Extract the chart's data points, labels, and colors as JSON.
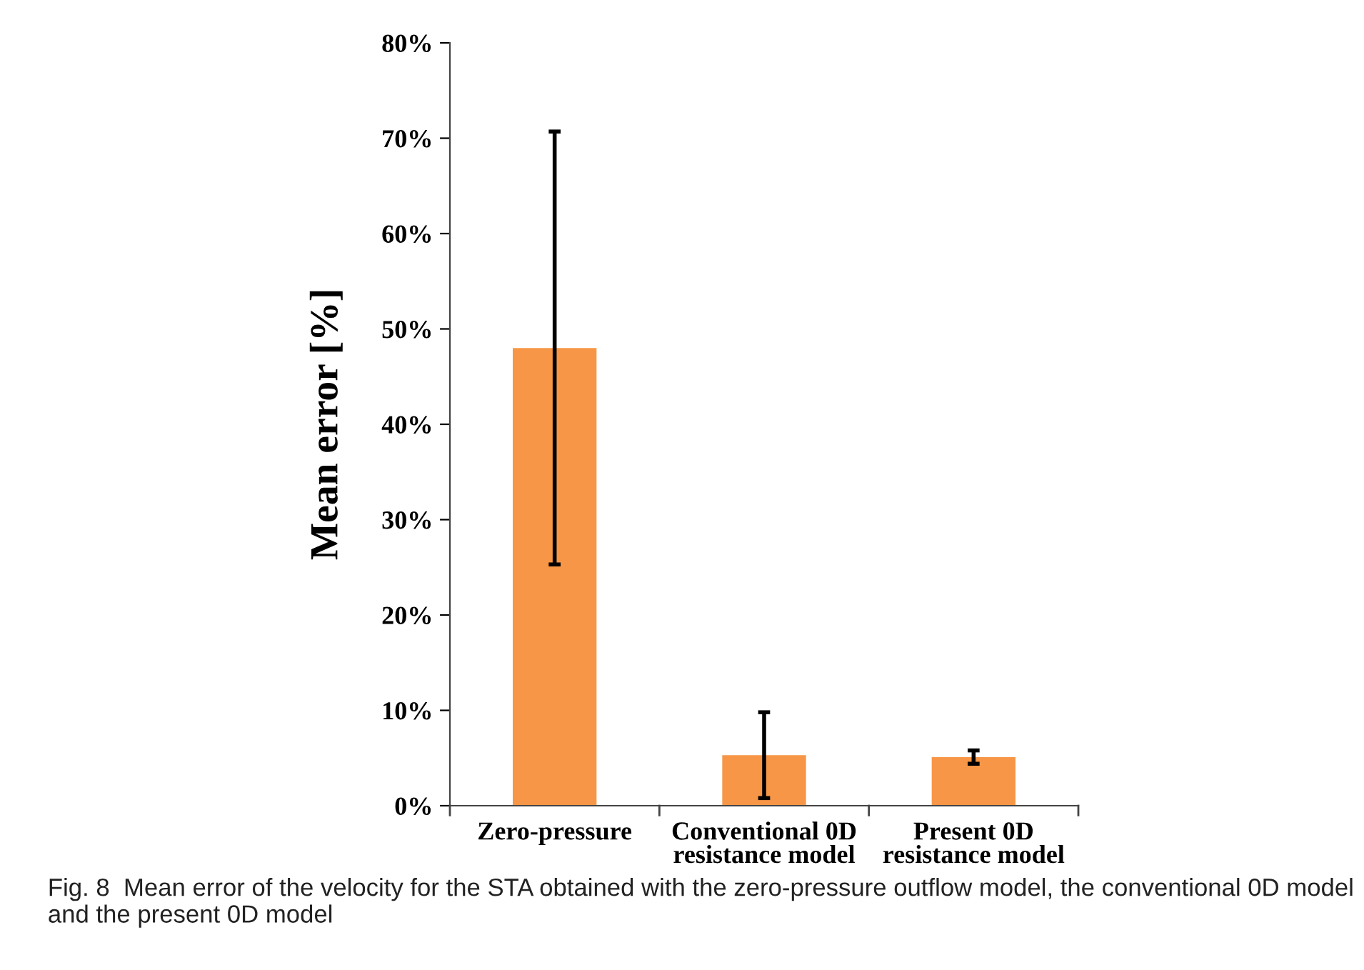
{
  "chart_data": {
    "type": "bar",
    "ylabel": "Mean error [%]",
    "categories": [
      "Zero-pressure",
      "Conventional 0D\nresistance model",
      "Present 0D\nresistance model"
    ],
    "values": [
      48.0,
      5.3,
      5.1
    ],
    "errors": [
      22.7,
      4.5,
      0.7
    ],
    "color": "#f79646",
    "ylim": [
      0,
      80
    ],
    "yticks": [
      {
        "value": 0,
        "label": "0%"
      },
      {
        "value": 10,
        "label": "10%"
      },
      {
        "value": 20,
        "label": "20%"
      },
      {
        "value": 30,
        "label": "30%"
      },
      {
        "value": 40,
        "label": "40%"
      },
      {
        "value": 50,
        "label": "50%"
      },
      {
        "value": 60,
        "label": "60%"
      },
      {
        "value": 70,
        "label": "70%"
      },
      {
        "value": 80,
        "label": "80%"
      }
    ],
    "grid": false,
    "annotations": [
      "Fig. 8  Mean error of the velocity for the STA obtained with the zero-pressure outflow model, the conventional 0D model and the present 0D model"
    ]
  }
}
